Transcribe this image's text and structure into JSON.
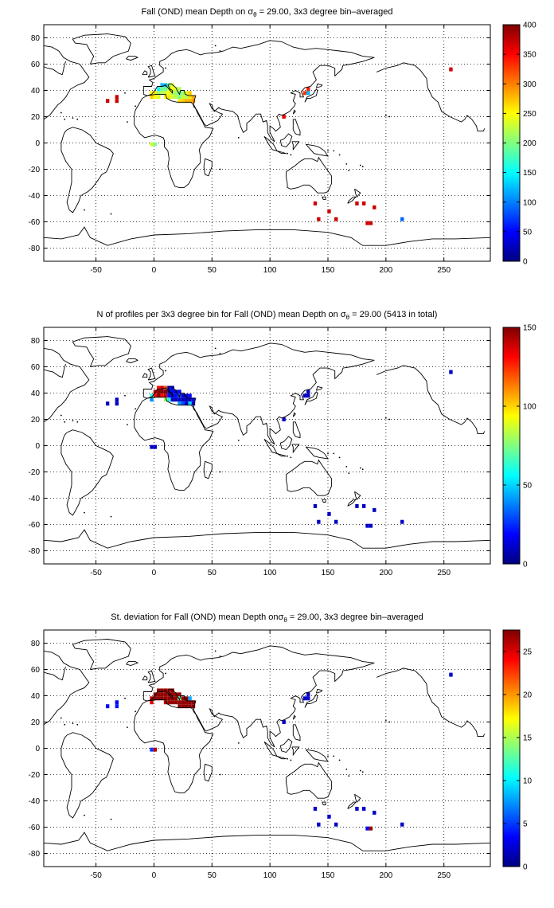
{
  "chart_data": [
    {
      "type": "heatmap",
      "title_parts": [
        "Fall (OND) mean Depth on σ",
        "θ",
        " = 29.00, 3x3 degree bin–averaged"
      ],
      "xlim": [
        -95,
        290
      ],
      "ylim": [
        -90,
        90
      ],
      "xticks": [
        -50,
        0,
        50,
        100,
        150,
        200,
        250
      ],
      "yticks": [
        -80,
        -60,
        -40,
        -20,
        0,
        20,
        40,
        60,
        80
      ],
      "grid": true,
      "clim": [
        0,
        400
      ],
      "colorbar_ticks": [
        0,
        50,
        100,
        150,
        200,
        250,
        300,
        350,
        400
      ],
      "cells": [
        [
          -40,
          32,
          370
        ],
        [
          -32,
          35,
          370
        ],
        [
          -32,
          32,
          370
        ],
        [
          -2,
          35,
          270
        ],
        [
          -2,
          38,
          250
        ],
        [
          1,
          38,
          260
        ],
        [
          1,
          35,
          250
        ],
        [
          4,
          41,
          150
        ],
        [
          4,
          38,
          210
        ],
        [
          4,
          35,
          240
        ],
        [
          7,
          44,
          120
        ],
        [
          7,
          41,
          200
        ],
        [
          7,
          38,
          220
        ],
        [
          10,
          44,
          120
        ],
        [
          10,
          41,
          190
        ],
        [
          10,
          38,
          230
        ],
        [
          10,
          35,
          250
        ],
        [
          13,
          44,
          200
        ],
        [
          13,
          41,
          230
        ],
        [
          13,
          38,
          250
        ],
        [
          13,
          35,
          260
        ],
        [
          16,
          44,
          240
        ],
        [
          16,
          41,
          250
        ],
        [
          16,
          38,
          220
        ],
        [
          16,
          35,
          230
        ],
        [
          19,
          41,
          230
        ],
        [
          19,
          38,
          210
        ],
        [
          19,
          35,
          220
        ],
        [
          22,
          41,
          220
        ],
        [
          22,
          38,
          190
        ],
        [
          22,
          35,
          200
        ],
        [
          22,
          32,
          260
        ],
        [
          25,
          38,
          210
        ],
        [
          25,
          35,
          230
        ],
        [
          25,
          32,
          270
        ],
        [
          28,
          38,
          240
        ],
        [
          28,
          35,
          220
        ],
        [
          28,
          32,
          280
        ],
        [
          31,
          38,
          270
        ],
        [
          31,
          35,
          260
        ],
        [
          31,
          32,
          280
        ],
        [
          34,
          35,
          280
        ],
        [
          34,
          32,
          290
        ],
        [
          -2,
          -1,
          230
        ],
        [
          1,
          -1,
          200
        ],
        [
          112,
          20,
          360
        ],
        [
          130,
          38,
          330
        ],
        [
          133,
          41,
          340
        ],
        [
          133,
          38,
          120
        ],
        [
          256,
          56,
          370
        ],
        [
          139,
          -46,
          370
        ],
        [
          142,
          -58,
          370
        ],
        [
          151,
          -52,
          370
        ],
        [
          157,
          -58,
          370
        ],
        [
          175,
          -46,
          370
        ],
        [
          181,
          -46,
          370
        ],
        [
          184,
          -61,
          370
        ],
        [
          187,
          -61,
          370
        ],
        [
          190,
          -49,
          370
        ],
        [
          214,
          -58,
          90
        ]
      ]
    },
    {
      "type": "heatmap",
      "title_parts": [
        "N of profiles per 3x3 degree bin for Fall (OND) mean Depth on σ",
        "θ",
        " = 29.00 (5413 in total)"
      ],
      "xlim": [
        -95,
        290
      ],
      "ylim": [
        -90,
        90
      ],
      "xticks": [
        -50,
        0,
        50,
        100,
        150,
        200,
        250
      ],
      "yticks": [
        -80,
        -60,
        -40,
        -20,
        0,
        20,
        40,
        60,
        80
      ],
      "grid": true,
      "clim": [
        0,
        150
      ],
      "colorbar_ticks": [
        0,
        50,
        100,
        150
      ],
      "cells": [
        [
          -40,
          32,
          10
        ],
        [
          -32,
          35,
          10
        ],
        [
          -32,
          32,
          10
        ],
        [
          -2,
          35,
          40
        ],
        [
          -2,
          38,
          60
        ],
        [
          1,
          38,
          130
        ],
        [
          1,
          41,
          140
        ],
        [
          4,
          41,
          150
        ],
        [
          4,
          38,
          150
        ],
        [
          4,
          44,
          130
        ],
        [
          7,
          44,
          140
        ],
        [
          7,
          41,
          150
        ],
        [
          7,
          38,
          130
        ],
        [
          10,
          44,
          120
        ],
        [
          10,
          41,
          150
        ],
        [
          10,
          38,
          140
        ],
        [
          10,
          35,
          80
        ],
        [
          13,
          44,
          20
        ],
        [
          13,
          41,
          10
        ],
        [
          13,
          38,
          20
        ],
        [
          13,
          35,
          60
        ],
        [
          16,
          44,
          10
        ],
        [
          16,
          41,
          20
        ],
        [
          16,
          38,
          10
        ],
        [
          16,
          35,
          10
        ],
        [
          19,
          41,
          10
        ],
        [
          19,
          38,
          20
        ],
        [
          19,
          35,
          10
        ],
        [
          22,
          41,
          20
        ],
        [
          22,
          38,
          30
        ],
        [
          22,
          35,
          10
        ],
        [
          22,
          32,
          40
        ],
        [
          25,
          38,
          10
        ],
        [
          25,
          35,
          10
        ],
        [
          25,
          32,
          30
        ],
        [
          28,
          38,
          10
        ],
        [
          28,
          35,
          10
        ],
        [
          28,
          32,
          10
        ],
        [
          31,
          38,
          20
        ],
        [
          31,
          35,
          10
        ],
        [
          31,
          32,
          50
        ],
        [
          34,
          35,
          20
        ],
        [
          34,
          32,
          10
        ],
        [
          -2,
          -1,
          10
        ],
        [
          1,
          -1,
          10
        ],
        [
          112,
          20,
          10
        ],
        [
          130,
          38,
          10
        ],
        [
          133,
          41,
          10
        ],
        [
          133,
          38,
          10
        ],
        [
          256,
          56,
          10
        ],
        [
          139,
          -46,
          10
        ],
        [
          142,
          -58,
          10
        ],
        [
          151,
          -52,
          10
        ],
        [
          157,
          -58,
          10
        ],
        [
          175,
          -46,
          10
        ],
        [
          181,
          -46,
          10
        ],
        [
          184,
          -61,
          10
        ],
        [
          187,
          -61,
          10
        ],
        [
          190,
          -49,
          10
        ],
        [
          214,
          -58,
          10
        ]
      ]
    },
    {
      "type": "heatmap",
      "title_parts": [
        "St. deviation for Fall (OND) mean Depth onσ",
        "θ",
        " = 29.00, 3x3 degree bin–averaged"
      ],
      "xlim": [
        -95,
        290
      ],
      "ylim": [
        -90,
        90
      ],
      "xticks": [
        -50,
        0,
        50,
        100,
        150,
        200,
        250
      ],
      "yticks": [
        -80,
        -60,
        -40,
        -20,
        0,
        20,
        40,
        60,
        80
      ],
      "grid": true,
      "clim": [
        0,
        27.5
      ],
      "colorbar_ticks": [
        0,
        5,
        10,
        15,
        20,
        25
      ],
      "cells": [
        [
          -40,
          32,
          3
        ],
        [
          -32,
          35,
          3
        ],
        [
          -32,
          32,
          4
        ],
        [
          -2,
          35,
          25
        ],
        [
          -2,
          38,
          26
        ],
        [
          1,
          38,
          27
        ],
        [
          1,
          41,
          27
        ],
        [
          4,
          41,
          27
        ],
        [
          4,
          38,
          27
        ],
        [
          4,
          44,
          27
        ],
        [
          7,
          44,
          27
        ],
        [
          7,
          41,
          27
        ],
        [
          7,
          38,
          27
        ],
        [
          10,
          44,
          27
        ],
        [
          10,
          41,
          27
        ],
        [
          10,
          38,
          27
        ],
        [
          10,
          35,
          26
        ],
        [
          13,
          44,
          26
        ],
        [
          13,
          41,
          27
        ],
        [
          13,
          38,
          27
        ],
        [
          13,
          35,
          27
        ],
        [
          16,
          44,
          27
        ],
        [
          16,
          41,
          27
        ],
        [
          16,
          38,
          27
        ],
        [
          16,
          35,
          27
        ],
        [
          19,
          41,
          27
        ],
        [
          19,
          38,
          27
        ],
        [
          19,
          35,
          27
        ],
        [
          22,
          41,
          27
        ],
        [
          22,
          38,
          13
        ],
        [
          22,
          35,
          27
        ],
        [
          22,
          32,
          27
        ],
        [
          25,
          38,
          27
        ],
        [
          25,
          35,
          27
        ],
        [
          25,
          32,
          27
        ],
        [
          28,
          38,
          27
        ],
        [
          28,
          35,
          27
        ],
        [
          28,
          32,
          27
        ],
        [
          31,
          38,
          8
        ],
        [
          31,
          35,
          27
        ],
        [
          31,
          32,
          27
        ],
        [
          34,
          35,
          27
        ],
        [
          34,
          32,
          27
        ],
        [
          -2,
          -1,
          5
        ],
        [
          1,
          -1,
          26
        ],
        [
          112,
          20,
          2
        ],
        [
          130,
          38,
          2
        ],
        [
          133,
          41,
          2
        ],
        [
          133,
          38,
          2
        ],
        [
          256,
          56,
          2
        ],
        [
          139,
          -46,
          2
        ],
        [
          142,
          -58,
          2
        ],
        [
          151,
          -52,
          2
        ],
        [
          157,
          -58,
          2
        ],
        [
          175,
          -46,
          2
        ],
        [
          181,
          -46,
          2
        ],
        [
          184,
          -61,
          3
        ],
        [
          187,
          -61,
          27
        ],
        [
          190,
          -49,
          2
        ],
        [
          214,
          -58,
          2
        ]
      ]
    }
  ]
}
